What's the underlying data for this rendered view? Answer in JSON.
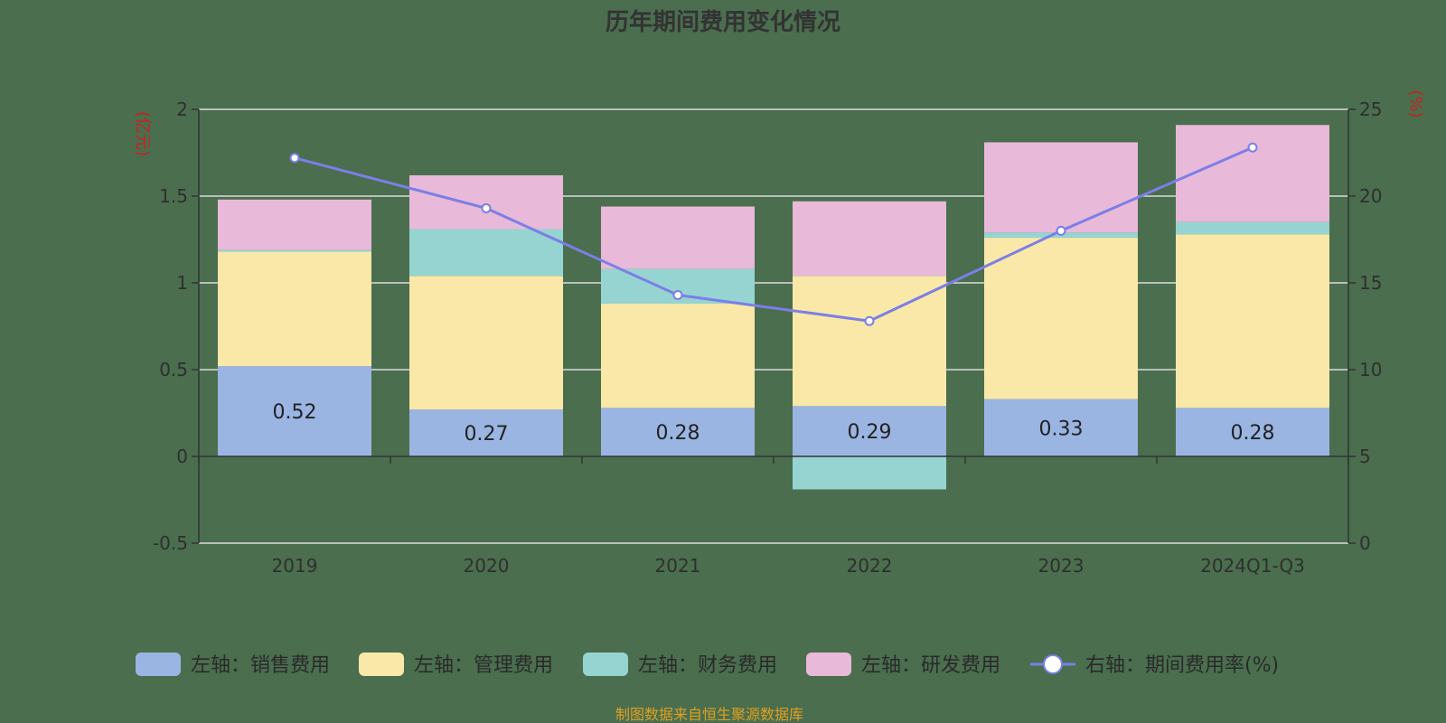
{
  "chart_data": {
    "type": "bar",
    "title": "历年期间费用变化情况",
    "left_unit": "(亿元)",
    "right_unit": "(%)",
    "categories": [
      "2019",
      "2020",
      "2021",
      "2022",
      "2023",
      "2024Q1-Q3"
    ],
    "left_axis": {
      "min": -0.5,
      "max": 2,
      "ticks": [
        "-0.5",
        "0",
        "0.5",
        "1",
        "1.5",
        "2"
      ]
    },
    "right_axis": {
      "min": 0,
      "max": 25,
      "ticks": [
        "0",
        "5",
        "10",
        "15",
        "20",
        "25"
      ]
    },
    "series": [
      {
        "name": "左轴：销售费用",
        "kind": "bar",
        "color": "#9bb5e3",
        "values": [
          0.52,
          0.27,
          0.28,
          0.29,
          0.33,
          0.28
        ],
        "labels": [
          "0.52",
          "0.27",
          "0.28",
          "0.29",
          "0.33",
          "0.28"
        ]
      },
      {
        "name": "左轴：管理费用",
        "kind": "bar",
        "color": "#f9e8a8",
        "values": [
          0.66,
          0.77,
          0.6,
          0.75,
          0.93,
          1.0
        ]
      },
      {
        "name": "左轴：财务费用",
        "kind": "bar",
        "color": "#96d4d2",
        "values": [
          0.01,
          0.27,
          0.2,
          -0.19,
          0.03,
          0.07
        ]
      },
      {
        "name": "左轴：研发费用",
        "kind": "bar",
        "color": "#e8b9d8",
        "values": [
          0.29,
          0.31,
          0.36,
          0.43,
          0.52,
          0.56
        ]
      },
      {
        "name": "右轴：期间费用率(%)",
        "kind": "line",
        "color": "#7b7fe6",
        "values": [
          22.2,
          19.3,
          14.3,
          12.8,
          18.0,
          22.8
        ]
      }
    ],
    "legend_position": "bottom",
    "grid": true
  },
  "source": "制图数据来自恒生聚源数据库"
}
